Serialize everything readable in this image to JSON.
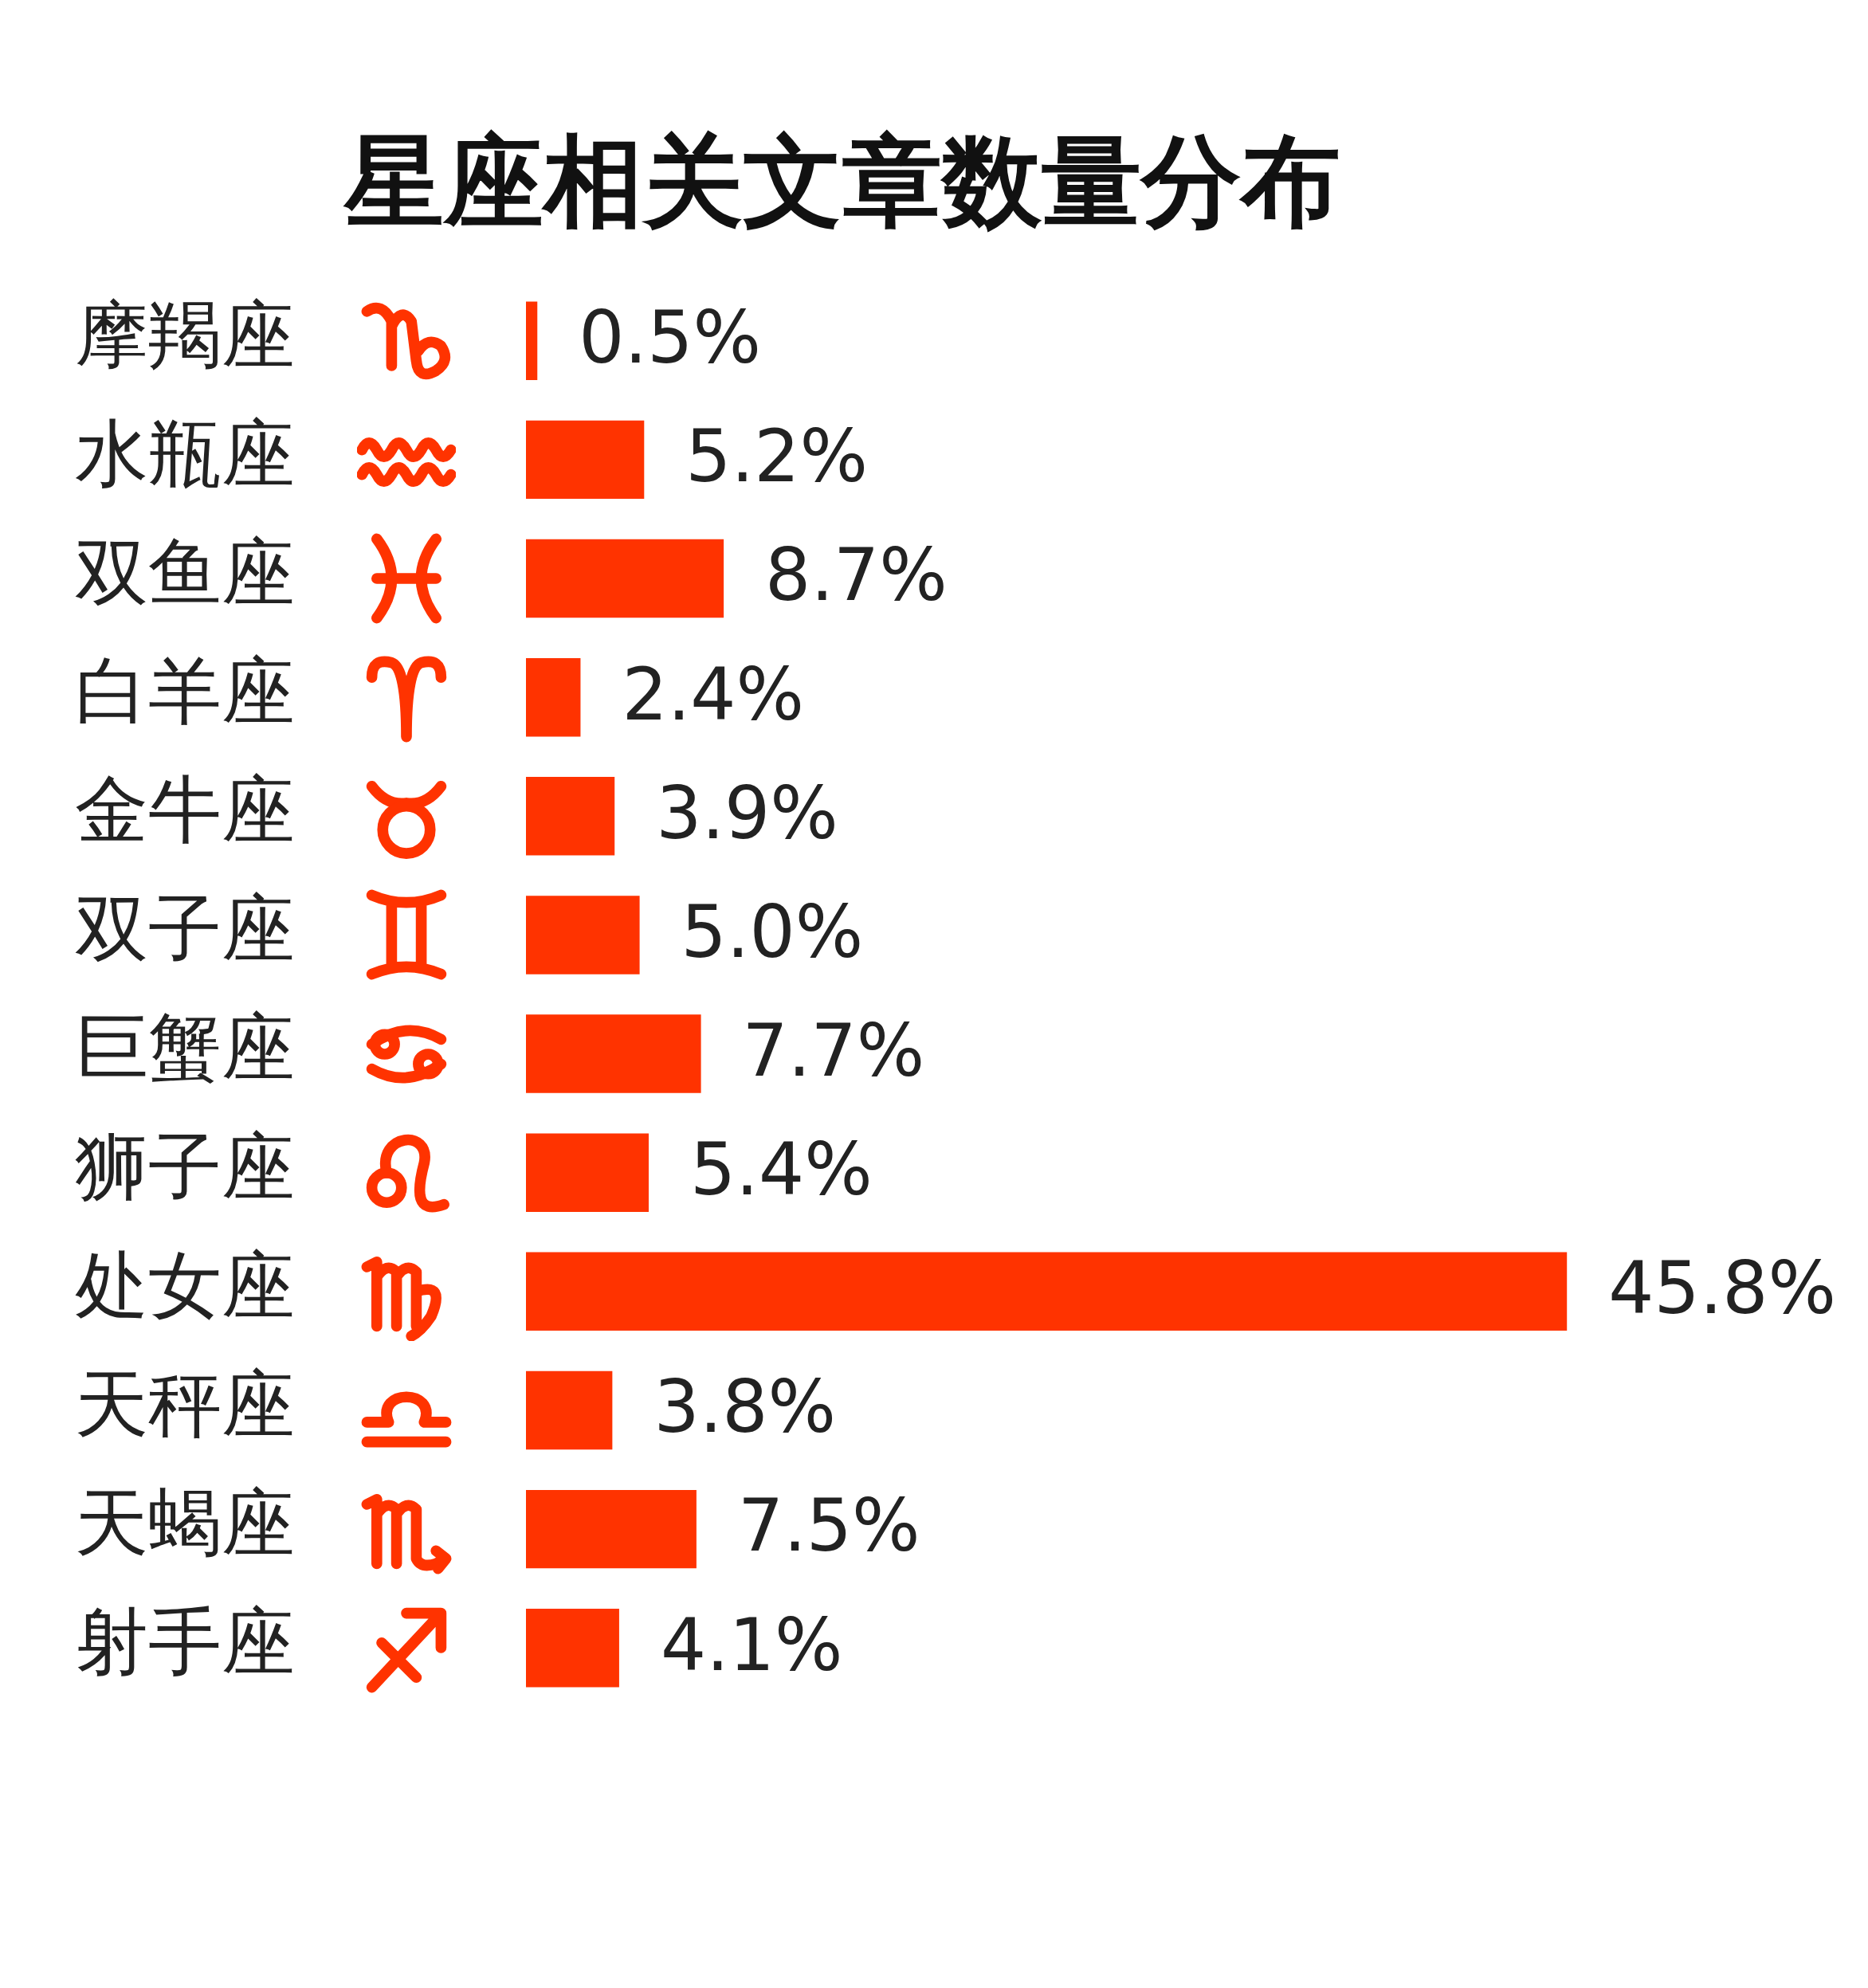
{
  "chart_data": {
    "type": "bar",
    "orientation": "horizontal",
    "title": "星座相关文章数量分布",
    "categories": [
      "摩羯座",
      "水瓶座",
      "双鱼座",
      "白羊座",
      "金牛座",
      "双子座",
      "巨蟹座",
      "狮子座",
      "处女座",
      "天秤座",
      "天蝎座",
      "射手座"
    ],
    "values": [
      0.5,
      5.2,
      8.7,
      2.4,
      3.9,
      5.0,
      7.7,
      5.4,
      45.8,
      3.8,
      7.5,
      4.1
    ],
    "value_labels": [
      "0.5%",
      "5.2%",
      "8.7%",
      "2.4%",
      "3.9%",
      "5.0%",
      "7.7%",
      "5.4%",
      "45.8%",
      "3.8%",
      "7.5%",
      "4.1%"
    ],
    "color": "#ff3300",
    "grid": false,
    "legend": false,
    "tick_labels": "y"
  }
}
